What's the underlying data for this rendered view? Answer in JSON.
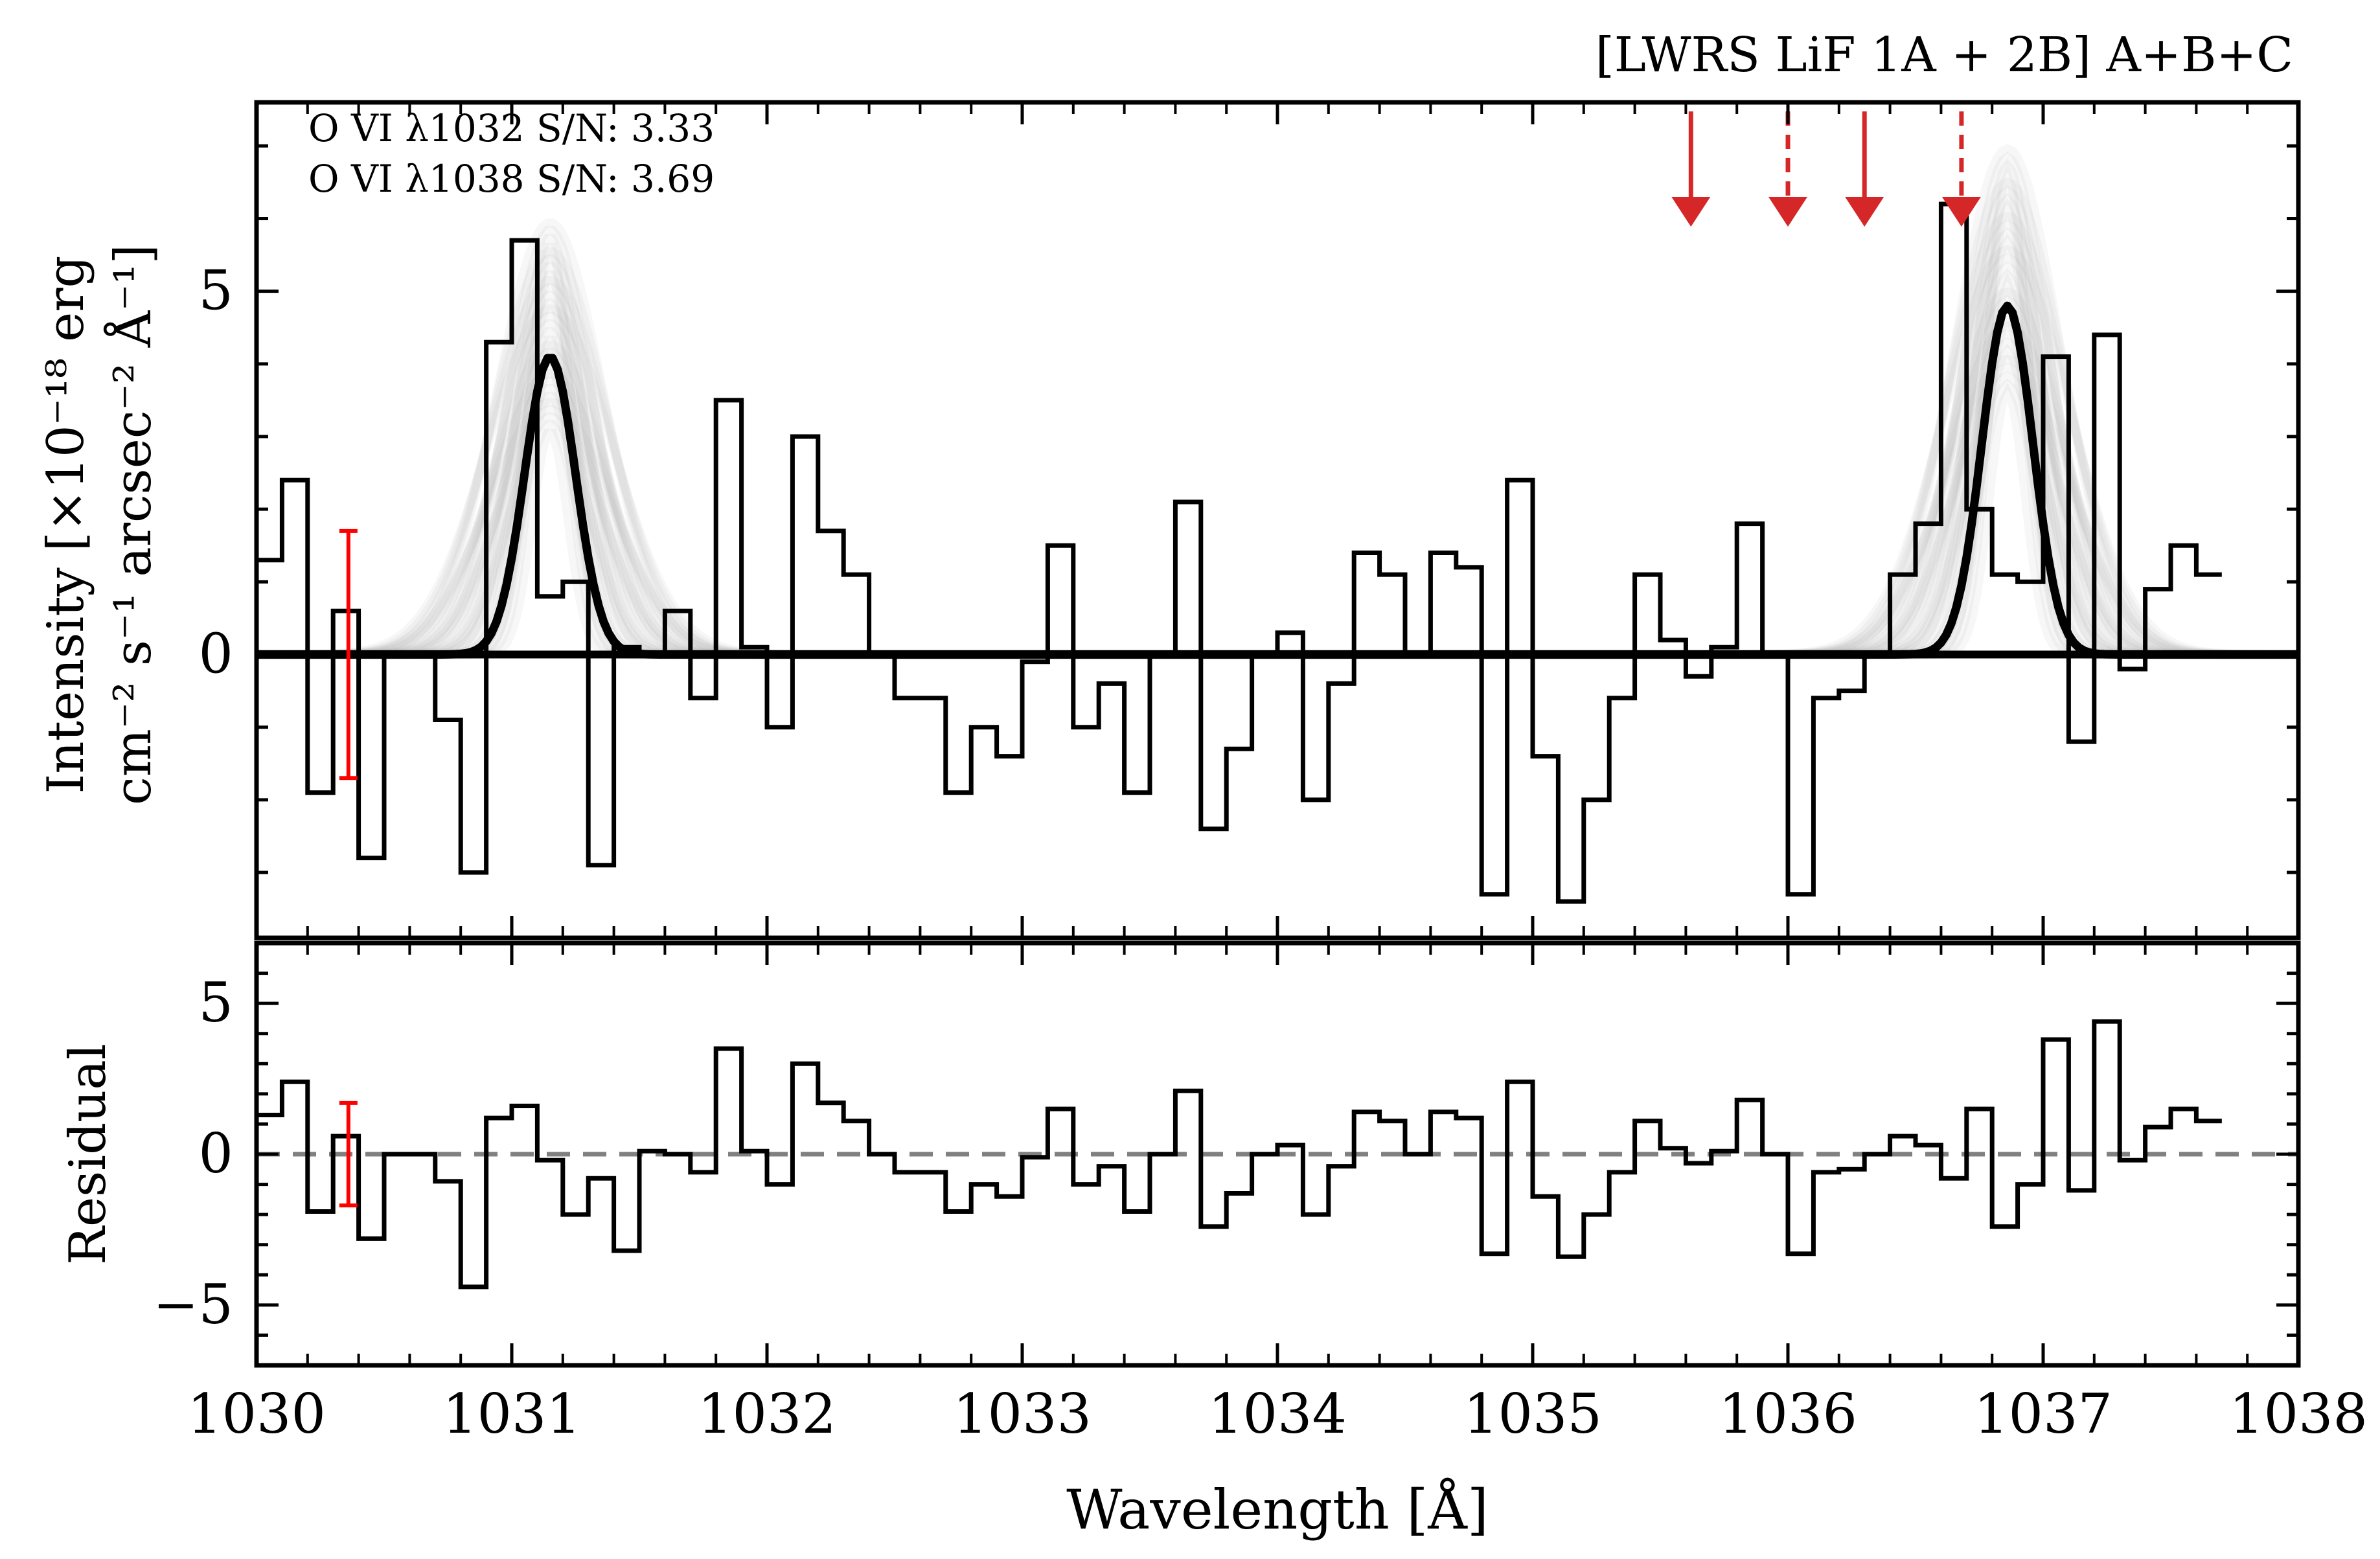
{
  "chart_data": [
    {
      "type": "line",
      "panel": "spectrum",
      "title": "[LWRS LiF 1A + 2B] A+B+C",
      "ylabel_line1": "Intensity [×10⁻¹⁸ erg",
      "ylabel_line2": "cm⁻² s⁻¹ arcsec⁻² Å⁻¹]",
      "xlim": [
        1030,
        1038
      ],
      "ylim": [
        -3.9,
        7.6
      ],
      "yticks": [
        0,
        5
      ],
      "ytick_labels": [
        "0",
        "5"
      ],
      "annotations": [
        "O VI λ1032 S/N: 3.33",
        "O VI λ1038 S/N: 3.69"
      ],
      "bin_edges_start": 1030.0,
      "bin_width": 0.1,
      "data_values": [
        1.3,
        2.4,
        -1.9,
        0.6,
        -2.8,
        0.0,
        0.0,
        -0.9,
        -3.0,
        4.3,
        5.7,
        0.8,
        1.0,
        -2.9,
        0.1,
        0.0,
        0.6,
        -0.6,
        3.5,
        0.1,
        -1.0,
        3.0,
        1.7,
        1.1,
        0.0,
        -0.6,
        -0.6,
        -1.9,
        -1.0,
        -1.4,
        -0.1,
        1.5,
        -1.0,
        -0.4,
        -1.9,
        0.0,
        2.1,
        -2.4,
        -1.3,
        0.0,
        0.3,
        -2.0,
        -0.4,
        1.4,
        1.1,
        0.0,
        1.4,
        1.2,
        -3.3,
        2.4,
        -1.4,
        -3.4,
        -2.0,
        -0.6,
        1.1,
        0.2,
        -0.3,
        0.1,
        1.8,
        0.0,
        -3.3,
        -0.6,
        -0.5,
        0.0,
        1.1,
        1.8,
        6.2,
        2.0,
        1.1,
        1.0,
        4.1,
        -1.2,
        4.4,
        -0.2,
        0.9,
        1.5,
        1.1
      ],
      "errorbar": {
        "x": 1030.36,
        "center": -0.1,
        "low": -1.7,
        "high": 1.7,
        "color": "#ff0000"
      },
      "model": {
        "name": "best-fit Gaussian",
        "lines": [
          {
            "center": 1031.15,
            "amplitude": 4.1,
            "sigma": 0.1
          },
          {
            "center": 1036.86,
            "amplitude": 4.8,
            "sigma": 0.1
          }
        ],
        "sample_count": 30,
        "band_color": "#9e9e9e",
        "line_color": "#000000"
      },
      "arrows": [
        {
          "x": 1035.62,
          "style": "solid"
        },
        {
          "x": 1036.0,
          "style": "dashed"
        },
        {
          "x": 1036.3,
          "style": "solid"
        },
        {
          "x": 1036.68,
          "style": "dashed"
        }
      ],
      "arrow_color": "#d62728"
    },
    {
      "type": "line",
      "panel": "residual",
      "ylabel": "Residual",
      "xlabel": "Wavelength [Å]",
      "xlim": [
        1030,
        1038
      ],
      "ylim": [
        -7.0,
        7.0
      ],
      "yticks": [
        -5,
        0,
        5
      ],
      "ytick_labels": [
        "−5",
        "0",
        "5"
      ],
      "xticks": [
        1030,
        1031,
        1032,
        1033,
        1034,
        1035,
        1036,
        1037,
        1038
      ],
      "xtick_labels": [
        "1030",
        "1031",
        "1032",
        "1033",
        "1034",
        "1035",
        "1036",
        "1037",
        "1038"
      ],
      "bin_edges_start": 1030.0,
      "bin_width": 0.1,
      "residual_values": [
        1.3,
        2.4,
        -1.9,
        0.6,
        -2.8,
        0.0,
        0.0,
        -0.9,
        -4.4,
        1.2,
        1.6,
        -0.2,
        -2.0,
        -0.8,
        -3.2,
        0.1,
        0.0,
        -0.6,
        3.5,
        0.1,
        -1.0,
        3.0,
        1.7,
        1.1,
        0.0,
        -0.6,
        -0.6,
        -1.9,
        -1.0,
        -1.4,
        -0.1,
        1.5,
        -1.0,
        -0.4,
        -1.9,
        0.0,
        2.1,
        -2.4,
        -1.3,
        0.0,
        0.3,
        -2.0,
        -0.4,
        1.4,
        1.1,
        0.0,
        1.4,
        1.2,
        -3.3,
        2.4,
        -1.4,
        -3.4,
        -2.0,
        -0.6,
        1.1,
        0.2,
        -0.3,
        0.1,
        1.8,
        0.0,
        -3.3,
        -0.6,
        -0.5,
        0.0,
        0.6,
        0.3,
        -0.8,
        1.5,
        -2.4,
        -1.0,
        3.8,
        -1.2,
        4.4,
        -0.2,
        0.9,
        1.5,
        1.1
      ],
      "errorbar": {
        "x": 1030.36,
        "center": 0.0,
        "low": -1.7,
        "high": 1.7,
        "color": "#ff0000"
      },
      "reference_line": {
        "y": 0,
        "style": "dashed",
        "color": "#808080"
      }
    }
  ]
}
